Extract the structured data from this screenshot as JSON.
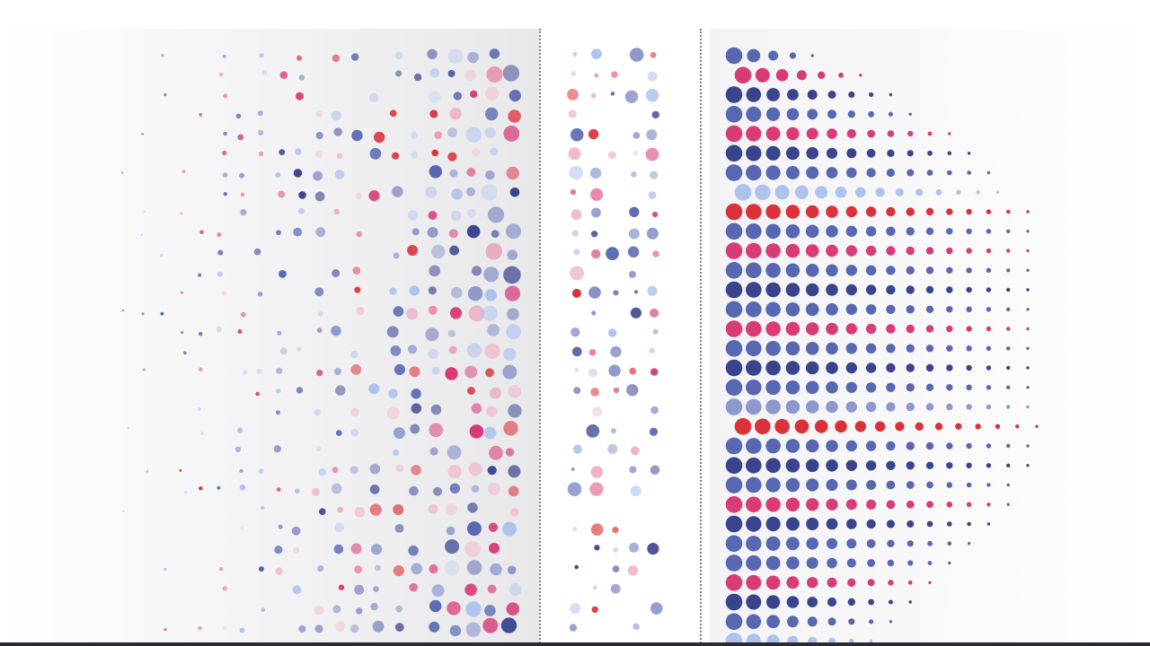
{
  "scene": {
    "description_free": true
  },
  "palette": {
    "navy": "#2e3a87",
    "blue": "#4f5fae",
    "periwinkle": "#8793c9",
    "light_blue": "#a9c0ec",
    "pale_blue": "#c9d3ee",
    "magenta": "#d6306f",
    "red": "#d9262d",
    "pink": "#e98aa9",
    "pale_pink": "#f1bfd0"
  }
}
